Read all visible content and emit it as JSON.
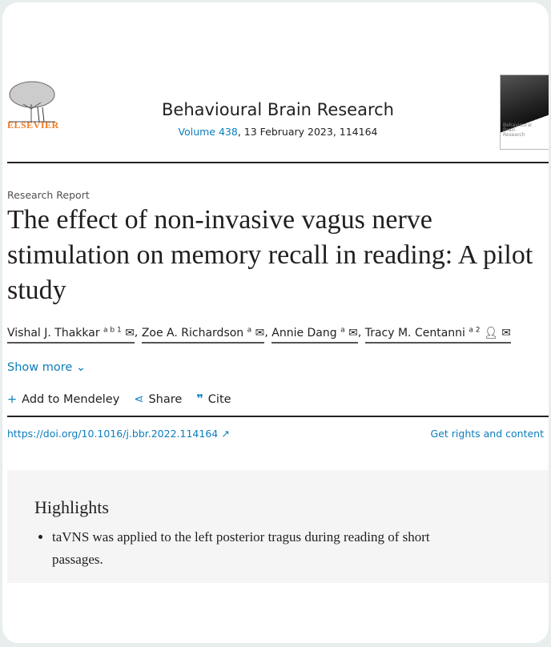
{
  "header": {
    "publisher_logo": "ELSEVIER",
    "journal_title": "Behavioural Brain Research",
    "volume_link": "Volume 438",
    "volume_rest": ", 13 February 2023, 114164",
    "cover_text": "Behavioural Brain Research"
  },
  "article": {
    "type": "Research Report",
    "title": "The effect of non-invasive vagus nerve stimulation on memory recall in reading: A pilot study",
    "authors": [
      {
        "name": "Vishal J. Thakkar",
        "sup": "a b 1"
      },
      {
        "name": "Zoe A. Richardson",
        "sup": "a"
      },
      {
        "name": "Annie Dang",
        "sup": "a"
      },
      {
        "name": "Tracy M. Centanni",
        "sup": "a 2"
      }
    ],
    "show_more": "Show more"
  },
  "actions": {
    "mendeley": "Add to Mendeley",
    "share": "Share",
    "cite": "Cite"
  },
  "doi": "https://doi.org/10.1016/j.bbr.2022.114164",
  "rights": "Get rights and content",
  "highlights": {
    "heading": "Highlights",
    "items": [
      "taVNS was applied to the left posterior tragus during reading of short passages."
    ]
  },
  "colors": {
    "link": "#0c7dbb",
    "elsevier_orange": "#f47920"
  }
}
